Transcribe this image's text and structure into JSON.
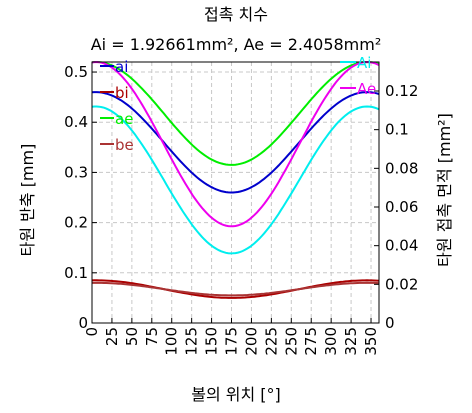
{
  "chart_data": {
    "type": "line",
    "title": "접촉 치수",
    "subtitle": "Ai = 1.92661mm², Ae = 2.4058mm²",
    "xlabel": "볼의 위치 [°]",
    "ylabel_left": "타원 반축 [mm]",
    "ylabel_right": "타원 접촉 면적 [mm²]",
    "xlim": [
      0,
      360
    ],
    "ylim_left": [
      0,
      0.52
    ],
    "ylim_right": [
      0,
      0.135
    ],
    "x_ticks": [
      "0",
      "25",
      "50",
      "75",
      "100",
      "125",
      "150",
      "175",
      "200",
      "225",
      "250",
      "275",
      "300",
      "325",
      "350"
    ],
    "y_ticks_left": [
      "0",
      "0.1",
      "0.2",
      "0.3",
      "0.4",
      "0.5"
    ],
    "y_ticks_right": [
      "0",
      "0.02",
      "0.04",
      "0.06",
      "0.08",
      "0.1",
      "0.12"
    ],
    "grid": true,
    "legend_left": [
      "ai",
      "bi",
      "ae",
      "be"
    ],
    "legend_right": [
      "Ai",
      "Ae"
    ],
    "series": [
      {
        "name": "ai",
        "axis": "left",
        "color": "#0000cc",
        "min": 0.26,
        "max": 0.46
      },
      {
        "name": "bi",
        "axis": "left",
        "color": "#aa0000",
        "min": 0.05,
        "max": 0.085
      },
      {
        "name": "ae",
        "axis": "left",
        "color": "#00ee00",
        "min": 0.315,
        "max": 0.52
      },
      {
        "name": "be",
        "axis": "left",
        "color": "#aa3333",
        "min": 0.055,
        "max": 0.08
      },
      {
        "name": "Ai",
        "axis": "right",
        "color": "#00eeee",
        "min": 0.036,
        "max": 0.112
      },
      {
        "name": "Ae",
        "axis": "right",
        "color": "#ee00ee",
        "min": 0.05,
        "max": 0.135
      }
    ]
  }
}
